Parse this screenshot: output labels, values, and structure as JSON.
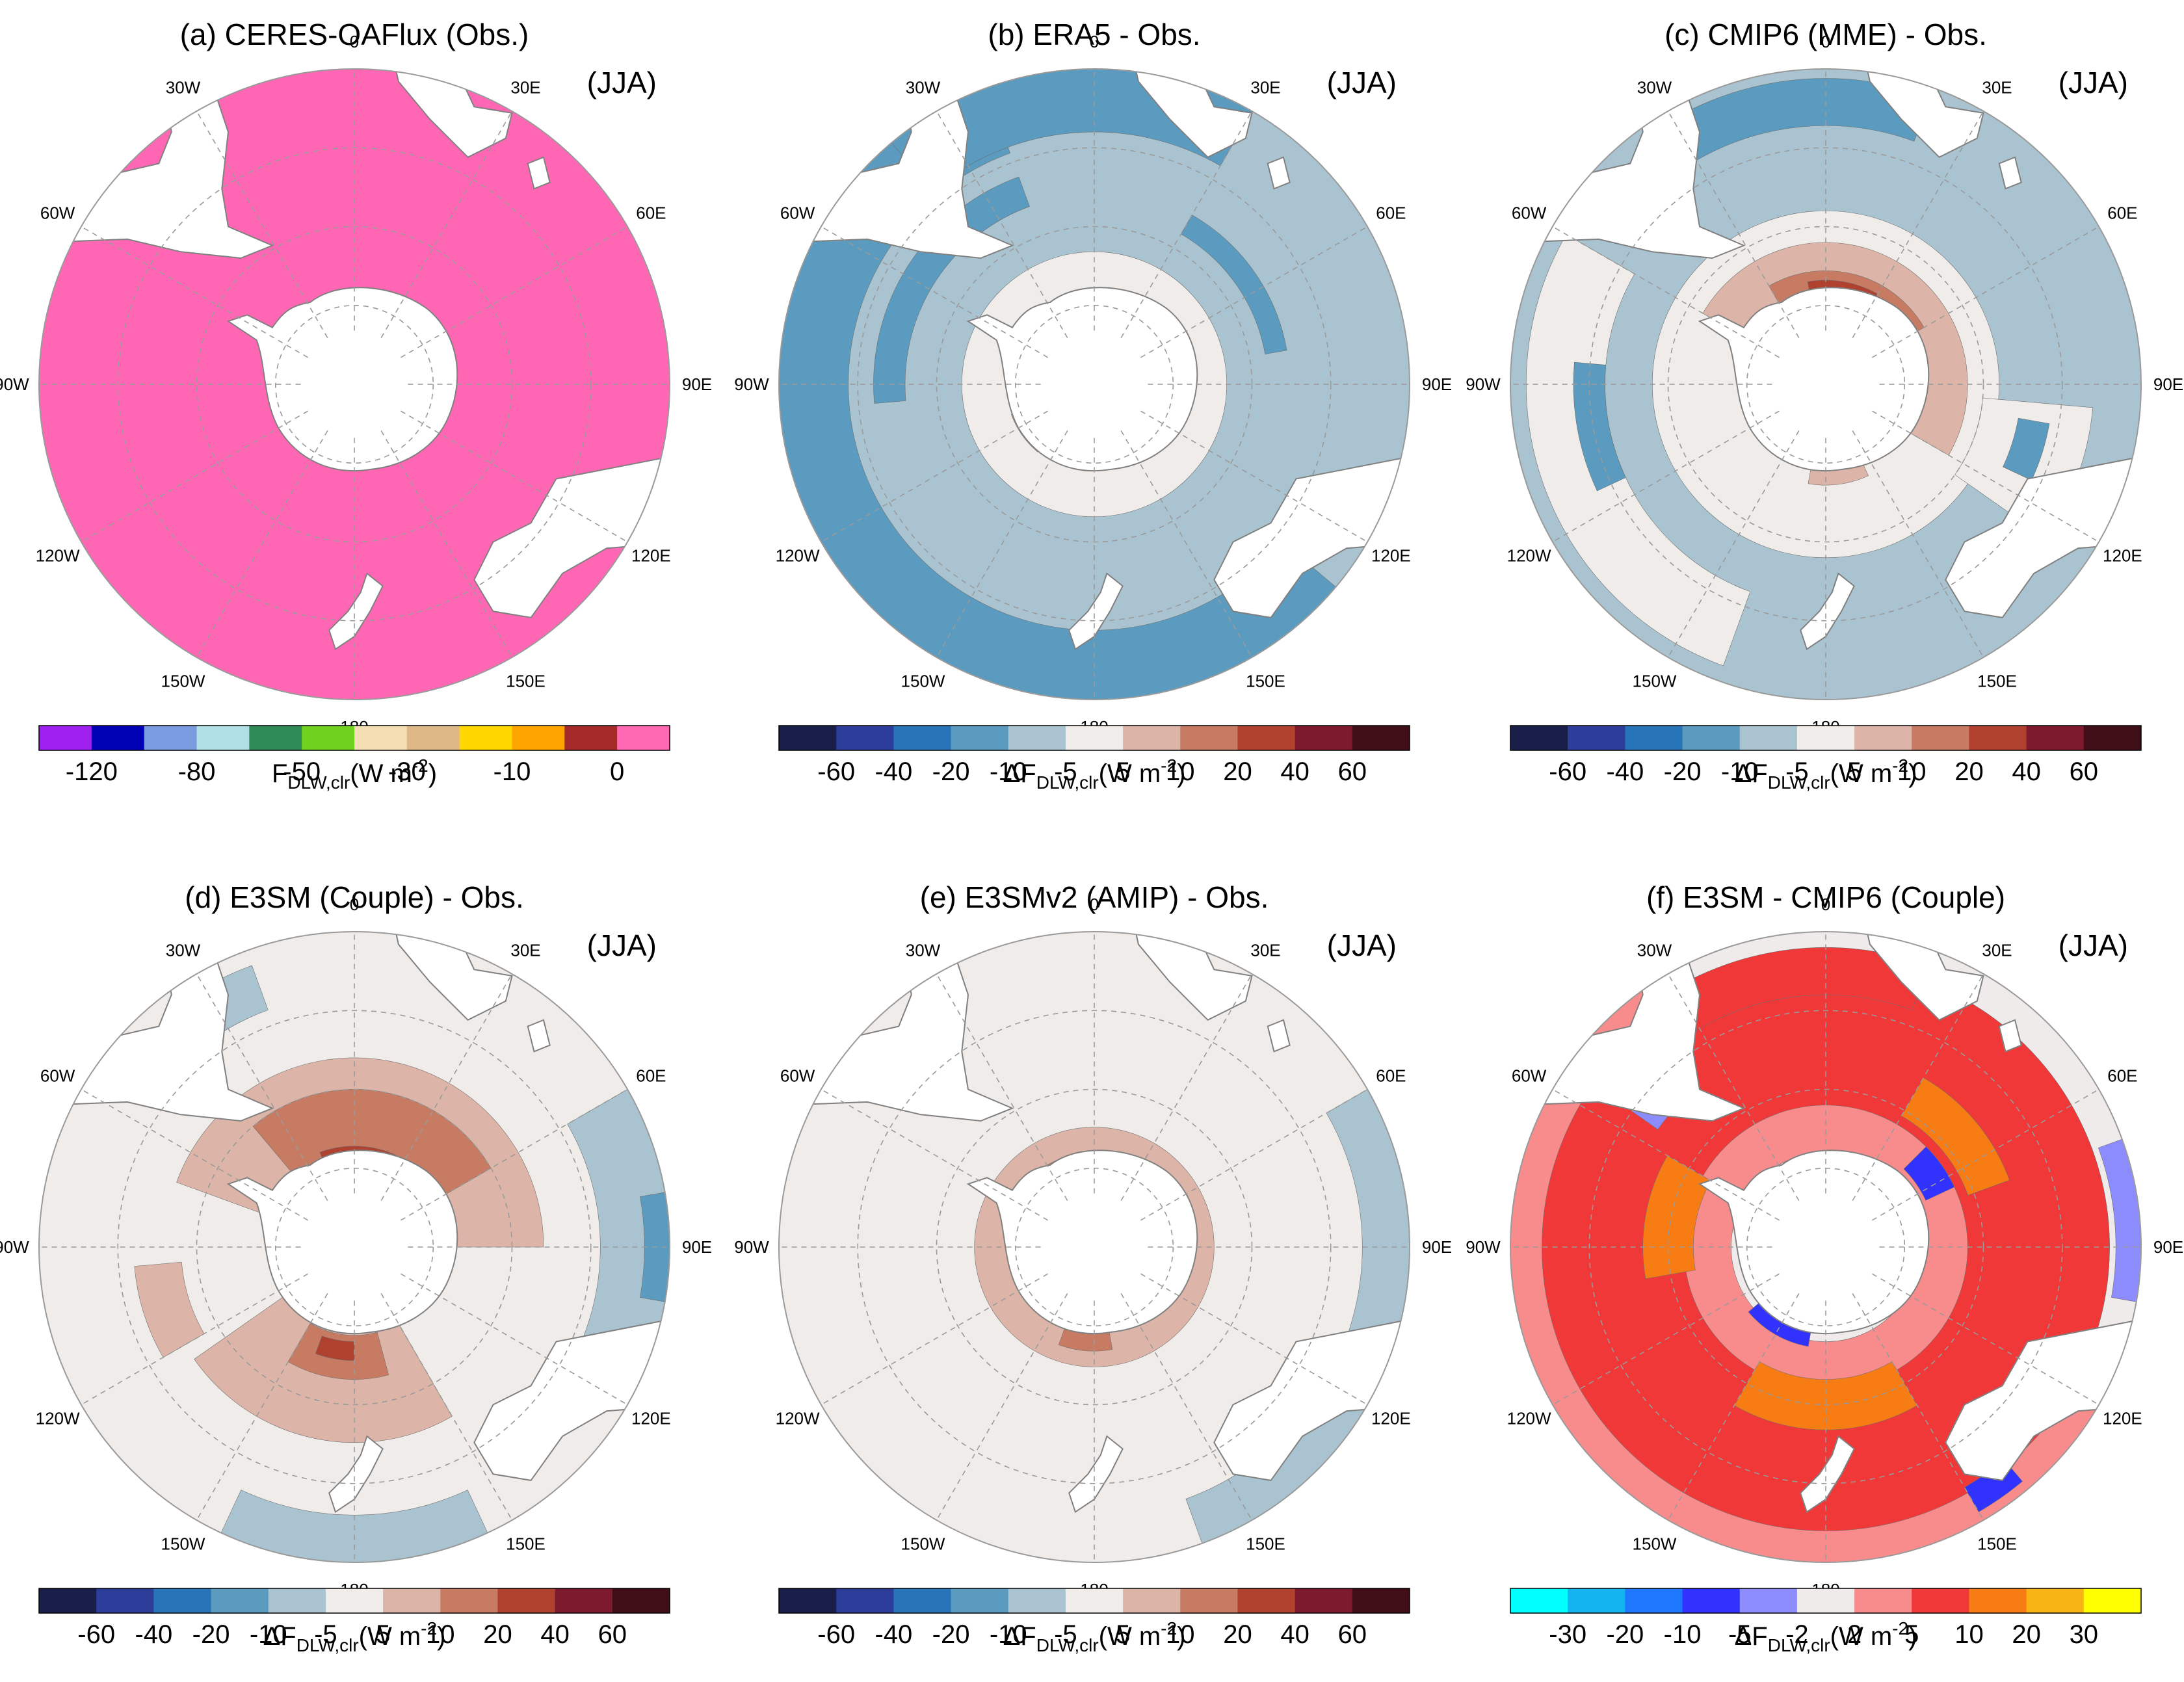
{
  "season": "(JJA)",
  "map_labels": {
    "top": "0",
    "bottom": "180",
    "left": "90W",
    "right": "90E",
    "upper_left_1": "30W",
    "upper_left_2": "60W",
    "lower_left_1": "120W",
    "lower_left_2": "150W",
    "upper_right_1": "30E",
    "upper_right_2": "60E",
    "lower_right_1": "120E",
    "lower_right_2": "150E"
  },
  "colors": {
    "land": "#ffffff",
    "coast": "#808080",
    "grid": "#9a9a9a",
    "obs_fill": "#ff66b3"
  },
  "colorbars": {
    "absolute": {
      "colors": [
        "#a020f0",
        "#0000b4",
        "#7b9be0",
        "#b0e0e6",
        "#2e8b57",
        "#6fd21e",
        "#f5deb3",
        "#deb887",
        "#ffd700",
        "#ffa500",
        "#a52a2a",
        "#ff69b4"
      ],
      "ticks": [
        "-120",
        "-80",
        "-50",
        "-30",
        "-10",
        "0"
      ],
      "tick_edges": [
        1,
        3,
        5,
        7,
        9,
        11
      ],
      "label_main": "F",
      "label_sub": "DLW,clr",
      "label_unit": "(W m",
      "label_sup": "-2",
      "label_end": ")"
    },
    "diff": {
      "colors": [
        "#1a1f4a",
        "#2c3e99",
        "#2874b8",
        "#5a9bbf",
        "#a9c4d0",
        "#efecea",
        "#dcb5a8",
        "#c87b63",
        "#b0412f",
        "#7d1a2e",
        "#400e17"
      ],
      "ticks": [
        "-60",
        "-40",
        "-20",
        "-10",
        "-5",
        "5",
        "10",
        "20",
        "40",
        "60"
      ],
      "tick_edges": [
        1,
        2,
        3,
        4,
        5,
        6,
        7,
        8,
        9,
        10
      ],
      "label_main": "ΔF",
      "label_sub": "DLW,clr",
      "label_unit": "(W m",
      "label_sup": "-2",
      "label_end": ")"
    },
    "diff2": {
      "colors": [
        "#00ffff",
        "#14b4f0",
        "#1e78ff",
        "#3232ff",
        "#8c8cff",
        "#f0ebeb",
        "#f88b8b",
        "#f03838",
        "#f87c14",
        "#f8b414",
        "#ffff00"
      ],
      "ticks": [
        "-30",
        "-20",
        "-10",
        "-5",
        "-2",
        "2",
        "5",
        "10",
        "20",
        "30"
      ],
      "tick_edges": [
        1,
        2,
        3,
        4,
        5,
        6,
        7,
        8,
        9,
        10
      ],
      "label_main": "ΔF",
      "label_sub": "DLW,clr",
      "label_unit": "(W m",
      "label_sup": "-2",
      "label_end": ")"
    }
  },
  "panels": [
    {
      "id": "a",
      "title": "(a) CERES-OAFlux (Obs.)",
      "scale": "absolute",
      "base": "#ff66b3",
      "regions": []
    },
    {
      "id": "b",
      "title": "(b) ERA5 - Obs.",
      "scale": "diff",
      "base": "#a9c4d0",
      "regions": [
        {
          "c": "#5a9bbf",
          "r1": 0.78,
          "r2": 1.0,
          "a1": 130,
          "a2": 340
        },
        {
          "c": "#5a9bbf",
          "r1": 0.8,
          "r2": 1.0,
          "a1": -40,
          "a2": 30
        },
        {
          "c": "#5a9bbf",
          "r1": 0.6,
          "r2": 0.7,
          "a1": -95,
          "a2": -20
        },
        {
          "c": "#5a9bbf",
          "r1": 0.55,
          "r2": 0.62,
          "a1": 30,
          "a2": 80
        },
        {
          "c": "#efecea",
          "r1": 0.2,
          "r2": 0.42,
          "a1": 0,
          "a2": 360
        },
        {
          "c": "#dcb5a8",
          "r1": 0.21,
          "r2": 0.28,
          "a1": 220,
          "a2": 250
        }
      ]
    },
    {
      "id": "c",
      "title": "(c) CMIP6 (MME) - Obs.",
      "scale": "diff",
      "base": "#efecea",
      "regions": [
        {
          "c": "#a9c4d0",
          "r1": 0.55,
          "r2": 1.0,
          "a1": 0,
          "a2": 360
        },
        {
          "c": "#efecea",
          "r1": 0.7,
          "r2": 0.95,
          "a1": 200,
          "a2": 300
        },
        {
          "c": "#efecea",
          "r1": 0.5,
          "r2": 0.85,
          "a1": 95,
          "a2": 125
        },
        {
          "c": "#5a9bbf",
          "r1": 0.82,
          "r2": 0.97,
          "a1": -30,
          "a2": 20
        },
        {
          "c": "#5a9bbf",
          "r1": 0.62,
          "r2": 0.72,
          "a1": 100,
          "a2": 115
        },
        {
          "c": "#5a9bbf",
          "r1": 0.7,
          "r2": 0.8,
          "a1": 245,
          "a2": 275
        },
        {
          "c": "#dcb5a8",
          "r1": 0.22,
          "r2": 0.45,
          "a1": -60,
          "a2": 120
        },
        {
          "c": "#c87b63",
          "r1": 0.24,
          "r2": 0.36,
          "a1": -30,
          "a2": 60
        },
        {
          "c": "#b0412f",
          "r1": 0.27,
          "r2": 0.33,
          "a1": -10,
          "a2": 30
        },
        {
          "c": "#dcb5a8",
          "r1": 0.24,
          "r2": 0.32,
          "a1": 155,
          "a2": 190
        }
      ]
    },
    {
      "id": "d",
      "title": "(d) E3SM (Couple) - Obs.",
      "scale": "diff",
      "base": "#efecea",
      "regions": [
        {
          "c": "#a9c4d0",
          "r1": 0.78,
          "r2": 1.0,
          "a1": 60,
          "a2": 120
        },
        {
          "c": "#5a9bbf",
          "r1": 0.92,
          "r2": 1.0,
          "a1": 80,
          "a2": 100
        },
        {
          "c": "#a9c4d0",
          "r1": 0.85,
          "r2": 1.0,
          "a1": 155,
          "a2": 205
        },
        {
          "c": "#a9c4d0",
          "r1": 0.8,
          "r2": 0.95,
          "a1": -35,
          "a2": -20
        },
        {
          "c": "#dcb5a8",
          "r1": 0.22,
          "r2": 0.6,
          "a1": -70,
          "a2": 90
        },
        {
          "c": "#dcb5a8",
          "r1": 0.25,
          "r2": 0.62,
          "a1": 150,
          "a2": 235
        },
        {
          "c": "#dcb5a8",
          "r1": 0.55,
          "r2": 0.7,
          "a1": 240,
          "a2": 265
        },
        {
          "c": "#c87b63",
          "r1": 0.22,
          "r2": 0.5,
          "a1": -40,
          "a2": 60
        },
        {
          "c": "#b0412f",
          "r1": 0.26,
          "r2": 0.32,
          "a1": -20,
          "a2": 25
        },
        {
          "c": "#c87b63",
          "r1": 0.28,
          "r2": 0.42,
          "a1": 165,
          "a2": 210
        },
        {
          "c": "#b0412f",
          "r1": 0.3,
          "r2": 0.36,
          "a1": 180,
          "a2": 200
        }
      ]
    },
    {
      "id": "e",
      "title": "(e) E3SMv2 (AMIP) - Obs.",
      "scale": "diff",
      "base": "#efecea",
      "regions": [
        {
          "c": "#a9c4d0",
          "r1": 0.85,
          "r2": 1.0,
          "a1": 60,
          "a2": 160
        },
        {
          "c": "#dcb5a8",
          "r1": 0.2,
          "r2": 0.38,
          "a1": 0,
          "a2": 360
        },
        {
          "c": "#c87b63",
          "r1": 0.22,
          "r2": 0.3,
          "a1": -50,
          "a2": 10
        },
        {
          "c": "#b0412f",
          "r1": 0.22,
          "r2": 0.27,
          "a1": -60,
          "a2": -40
        },
        {
          "c": "#c87b63",
          "r1": 0.25,
          "r2": 0.33,
          "a1": 170,
          "a2": 200
        }
      ]
    },
    {
      "id": "f",
      "title": "(f) E3SM - CMIP6 (Couple)",
      "scale": "diff2",
      "base": "#f88b8b",
      "regions": [
        {
          "c": "#f0ebeb",
          "r1": 0.9,
          "r2": 1.0,
          "a1": -30,
          "a2": 110
        },
        {
          "c": "#f03838",
          "r1": 0.45,
          "r2": 0.9,
          "a1": 0,
          "a2": 360
        },
        {
          "c": "#f03838",
          "r1": 0.8,
          "r2": 0.95,
          "a1": -40,
          "a2": 20
        },
        {
          "c": "#f87c14",
          "r1": 0.42,
          "r2": 0.58,
          "a1": 150,
          "a2": 210
        },
        {
          "c": "#f87c14",
          "r1": 0.48,
          "r2": 0.62,
          "a1": 30,
          "a2": 70
        },
        {
          "c": "#f87c14",
          "r1": 0.42,
          "r2": 0.58,
          "a1": -100,
          "a2": -60
        },
        {
          "c": "#f0ebeb",
          "r1": 0.2,
          "r2": 0.3,
          "a1": 0,
          "a2": 360
        },
        {
          "c": "#3232ff",
          "r1": 0.22,
          "r2": 0.3,
          "a1": -20,
          "a2": 20
        },
        {
          "c": "#3232ff",
          "r1": 0.22,
          "r2": 0.32,
          "a1": 190,
          "a2": 230
        },
        {
          "c": "#3232ff",
          "r1": 0.35,
          "r2": 0.45,
          "a1": 45,
          "a2": 65
        },
        {
          "c": "#8c8cff",
          "r1": 0.92,
          "r2": 1.0,
          "a1": 70,
          "a2": 100
        },
        {
          "c": "#8c8cff",
          "r1": 0.65,
          "r2": 0.75,
          "a1": -55,
          "a2": -45
        },
        {
          "c": "#3232ff",
          "r1": 0.88,
          "r2": 0.97,
          "a1": 140,
          "a2": 150
        }
      ]
    }
  ]
}
